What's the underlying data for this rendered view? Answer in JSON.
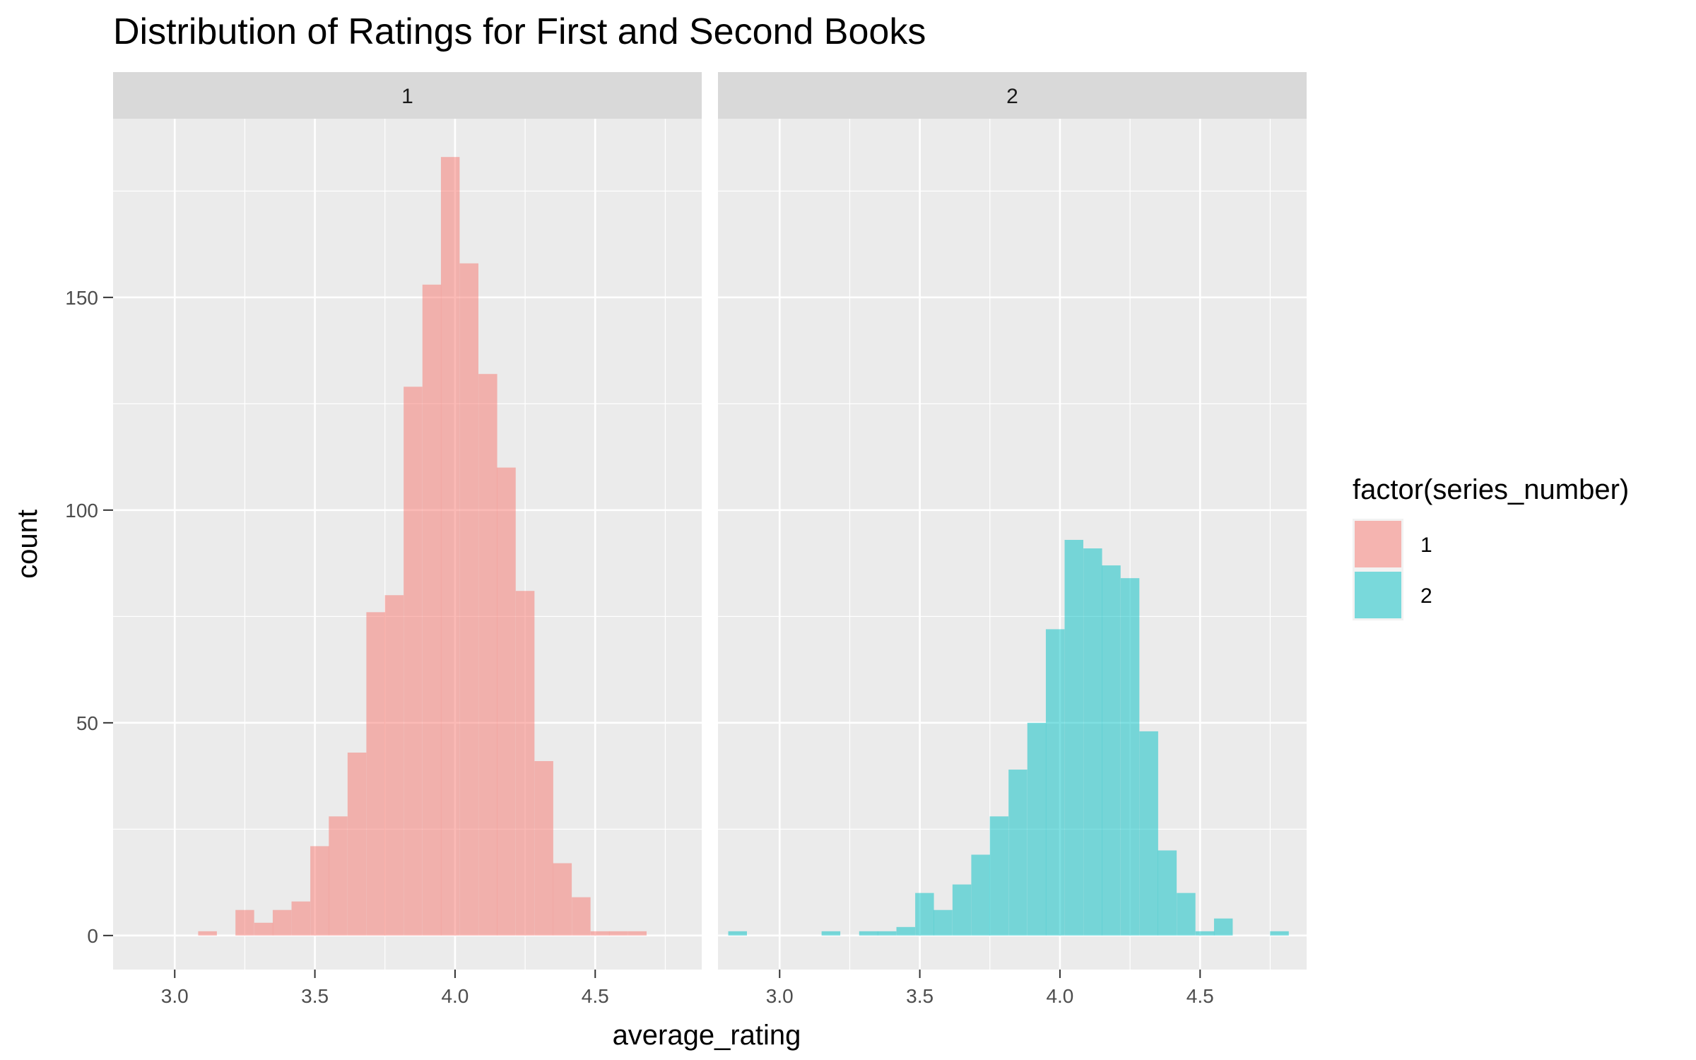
{
  "chart_data": {
    "type": "bar",
    "title": "Distribution of Ratings for First and Second Books",
    "xlabel": "average_rating",
    "ylabel": "count",
    "xlim": [
      2.78,
      4.88
    ],
    "ylim": [
      -8,
      192
    ],
    "x_ticks": [
      3.0,
      3.5,
      4.0,
      4.5
    ],
    "x_tick_labels": [
      "3.0",
      "3.5",
      "4.0",
      "4.5"
    ],
    "y_ticks": [
      0,
      50,
      100,
      150
    ],
    "y_tick_labels": [
      "0",
      "50",
      "100",
      "150"
    ],
    "bin_width": 0.0667,
    "grid": true,
    "legend": {
      "title": "factor(series_number)",
      "position": "right",
      "entries": [
        {
          "label": "1",
          "color": "#F8766D"
        },
        {
          "label": "2",
          "color": "#00BFC4"
        }
      ]
    },
    "panels": [
      {
        "strip_label": "1",
        "color": "#F8766D",
        "bins": [
          {
            "x": 3.117,
            "count": 1
          },
          {
            "x": 3.25,
            "count": 6
          },
          {
            "x": 3.317,
            "count": 3
          },
          {
            "x": 3.383,
            "count": 6
          },
          {
            "x": 3.45,
            "count": 8
          },
          {
            "x": 3.517,
            "count": 21
          },
          {
            "x": 3.583,
            "count": 28
          },
          {
            "x": 3.65,
            "count": 43
          },
          {
            "x": 3.717,
            "count": 76
          },
          {
            "x": 3.783,
            "count": 80
          },
          {
            "x": 3.85,
            "count": 129
          },
          {
            "x": 3.917,
            "count": 153
          },
          {
            "x": 3.983,
            "count": 183
          },
          {
            "x": 4.05,
            "count": 158
          },
          {
            "x": 4.117,
            "count": 132
          },
          {
            "x": 4.183,
            "count": 110
          },
          {
            "x": 4.25,
            "count": 81
          },
          {
            "x": 4.317,
            "count": 41
          },
          {
            "x": 4.383,
            "count": 17
          },
          {
            "x": 4.45,
            "count": 9
          },
          {
            "x": 4.517,
            "count": 1
          },
          {
            "x": 4.583,
            "count": 1
          },
          {
            "x": 4.65,
            "count": 1
          }
        ]
      },
      {
        "strip_label": "2",
        "color": "#00BFC4",
        "bins": [
          {
            "x": 2.85,
            "count": 1
          },
          {
            "x": 3.183,
            "count": 1
          },
          {
            "x": 3.317,
            "count": 1
          },
          {
            "x": 3.383,
            "count": 1
          },
          {
            "x": 3.45,
            "count": 2
          },
          {
            "x": 3.517,
            "count": 10
          },
          {
            "x": 3.583,
            "count": 6
          },
          {
            "x": 3.65,
            "count": 12
          },
          {
            "x": 3.717,
            "count": 19
          },
          {
            "x": 3.783,
            "count": 28
          },
          {
            "x": 3.85,
            "count": 39
          },
          {
            "x": 3.917,
            "count": 50
          },
          {
            "x": 3.983,
            "count": 72
          },
          {
            "x": 4.05,
            "count": 93
          },
          {
            "x": 4.117,
            "count": 91
          },
          {
            "x": 4.183,
            "count": 87
          },
          {
            "x": 4.25,
            "count": 84
          },
          {
            "x": 4.317,
            "count": 48
          },
          {
            "x": 4.383,
            "count": 20
          },
          {
            "x": 4.45,
            "count": 10
          },
          {
            "x": 4.517,
            "count": 1
          },
          {
            "x": 4.583,
            "count": 4
          },
          {
            "x": 4.783,
            "count": 1
          }
        ]
      }
    ]
  }
}
